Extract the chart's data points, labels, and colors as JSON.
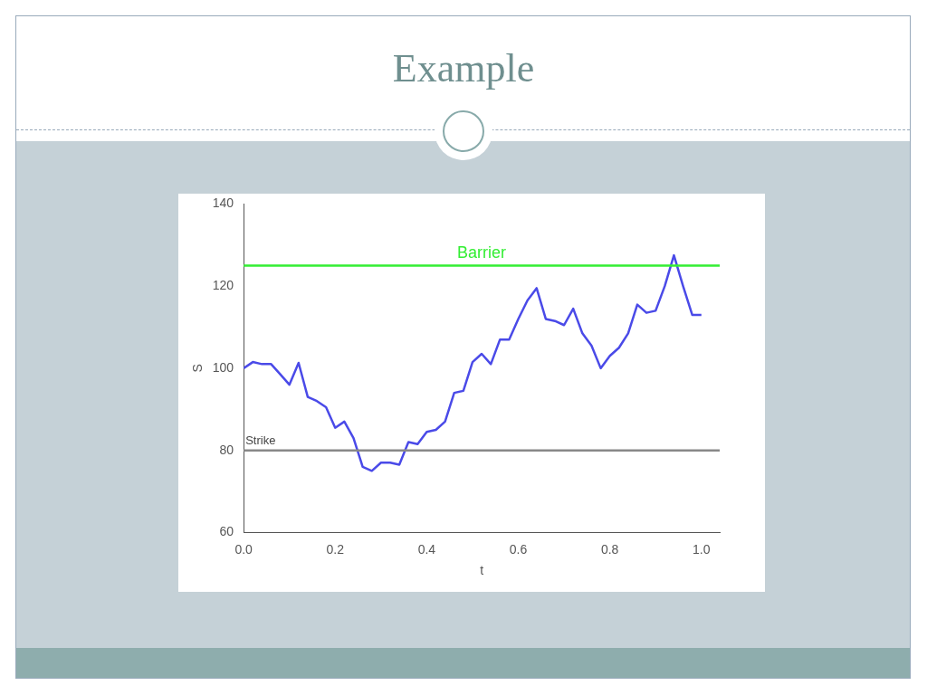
{
  "chart_data": {
    "type": "line",
    "title": "Example",
    "xlabel": "t",
    "ylabel": "S",
    "x": [
      0,
      0.02,
      0.04,
      0.06,
      0.08,
      0.1,
      0.12,
      0.14,
      0.16,
      0.18,
      0.2,
      0.22,
      0.24,
      0.26,
      0.28,
      0.3,
      0.32,
      0.34,
      0.36,
      0.38,
      0.4,
      0.42,
      0.44,
      0.46,
      0.48,
      0.5,
      0.52,
      0.54,
      0.56,
      0.58,
      0.6,
      0.62,
      0.64,
      0.66,
      0.68,
      0.7,
      0.72,
      0.74,
      0.76,
      0.78,
      0.8,
      0.82,
      0.84,
      0.86,
      0.88,
      0.9,
      0.92,
      0.94,
      0.96,
      0.98,
      1.0
    ],
    "series": [
      {
        "color": "#4a4ae8",
        "values": [
          100,
          101.5,
          101,
          101,
          98.5,
          96,
          101.3,
          93,
          92,
          90.5,
          85.5,
          87,
          83,
          76,
          75,
          77,
          77,
          76.5,
          82,
          81.5,
          84.5,
          85,
          87,
          94,
          94.5,
          101.5,
          103.5,
          101,
          107,
          107,
          112,
          116.5,
          119.5,
          112,
          111.5,
          110.5,
          114.5,
          108.5,
          105.5,
          100,
          103,
          105,
          108.5,
          115.5,
          113.5,
          114,
          120,
          127.5,
          120,
          113,
          113
        ]
      }
    ],
    "xlim": [
      0,
      1.04
    ],
    "xticks": [
      {
        "value": 0,
        "label": "0.0"
      },
      0.2,
      0.4,
      0.6,
      0.8,
      {
        "value": 1,
        "label": "1.0"
      }
    ],
    "ylim": [
      60,
      140
    ],
    "yticks": [
      60,
      80,
      100,
      120,
      140
    ],
    "ref_lines": [
      {
        "axis": "y",
        "value": 125,
        "label": "Barrier",
        "color": "#33ee33"
      },
      {
        "axis": "y",
        "value": 80,
        "label": "Strike",
        "color": "#888888"
      }
    ],
    "grid": false,
    "legend": false,
    "marker": "none",
    "line_style": "solid"
  }
}
